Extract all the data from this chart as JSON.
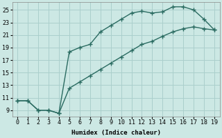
{
  "xlabel": "Humidex (Indice chaleur)",
  "bg_color": "#cce8e4",
  "grid_color": "#aacfcc",
  "line_color": "#2a6b61",
  "xlim": [
    -0.5,
    19.5
  ],
  "ylim": [
    8.0,
    26.2
  ],
  "xticks": [
    0,
    1,
    2,
    3,
    4,
    5,
    6,
    7,
    8,
    9,
    10,
    11,
    12,
    13,
    14,
    15,
    16,
    17,
    18,
    19
  ],
  "yticks": [
    9,
    11,
    13,
    15,
    17,
    19,
    21,
    23,
    25
  ],
  "curve1_x": [
    0,
    1,
    2,
    3,
    4,
    5,
    6,
    7,
    8,
    9,
    10,
    11,
    12,
    13,
    14,
    15,
    16,
    17,
    18,
    19
  ],
  "curve1_y": [
    10.5,
    10.5,
    9.0,
    9.0,
    8.5,
    18.3,
    19.0,
    19.5,
    21.5,
    22.5,
    23.5,
    24.5,
    24.8,
    24.5,
    24.7,
    25.5,
    25.5,
    25.0,
    23.5,
    21.8
  ],
  "curve2_x": [
    0,
    1,
    2,
    3,
    4,
    5,
    6,
    7,
    8,
    9,
    10,
    11,
    12,
    13,
    14,
    15,
    16,
    17,
    18,
    19
  ],
  "curve2_y": [
    10.5,
    10.5,
    9.0,
    9.0,
    8.5,
    12.5,
    13.5,
    14.5,
    15.5,
    16.5,
    17.5,
    18.5,
    19.5,
    20.0,
    20.8,
    21.5,
    22.0,
    22.3,
    22.0,
    21.8
  ]
}
